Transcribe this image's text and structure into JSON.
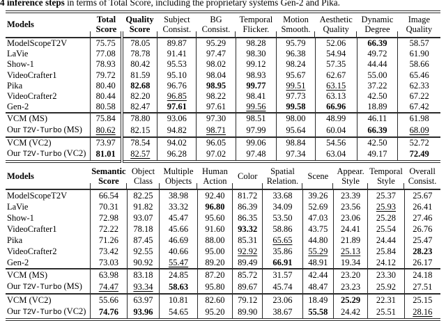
{
  "caption": {
    "bold": "4 inference steps",
    "rest": " in terms of Total Score, including the proprietary systems Gen-2 and Pika."
  },
  "colors": {
    "background": "#ffffff",
    "text": "#000000",
    "rule": "#2a2a2a"
  },
  "tables": [
    {
      "id": "vbench-quality-table",
      "models_header": "Models",
      "columns": [
        {
          "l1": "Total",
          "l2": "Score",
          "bold": true
        },
        {
          "l1": "Quality",
          "l2": "Score",
          "bold": true,
          "double_rule_left": true
        },
        {
          "l1": "Subject",
          "l2": "Consist."
        },
        {
          "l1": "BG",
          "l2": "Consist."
        },
        {
          "l1": "Temporal",
          "l2": "Flicker."
        },
        {
          "l1": "Motion",
          "l2": "Smooth."
        },
        {
          "l1": "Aesthetic",
          "l2": "Quality"
        },
        {
          "l1": "Dynamic",
          "l2": "Degree"
        },
        {
          "l1": "Image",
          "l2": "Quality"
        }
      ],
      "sections": [
        {
          "rows": [
            {
              "model": "ModelScopeT2V",
              "cells": [
                "75.75",
                "78.05",
                "89.87",
                "95.29",
                "98.28",
                "95.79",
                "52.06",
                {
                  "v": "66.39",
                  "f": "b"
                },
                "58.57"
              ]
            },
            {
              "model": "LaVie",
              "cells": [
                "77.08",
                "78.78",
                "91.41",
                "97.47",
                "98.30",
                "96.38",
                "54.94",
                "49.72",
                "61.90"
              ]
            },
            {
              "model": "Show-1",
              "cells": [
                "78.93",
                "80.42",
                "95.53",
                "98.02",
                "99.12",
                "98.24",
                "57.35",
                "44.44",
                "58.66"
              ]
            },
            {
              "model": "VideoCrafter1",
              "cells": [
                "79.72",
                "81.59",
                "95.10",
                "98.04",
                "98.93",
                "95.67",
                "62.67",
                "55.00",
                "65.46"
              ]
            },
            {
              "model": "Pika",
              "cells": [
                "80.40",
                {
                  "v": "82.68",
                  "f": "b"
                },
                "96.76",
                {
                  "v": "98.95",
                  "f": "b"
                },
                {
                  "v": "99.77",
                  "f": "b"
                },
                {
                  "v": "99.51",
                  "f": "u"
                },
                {
                  "v": "63.15",
                  "f": "u"
                },
                "37.22",
                "62.33"
              ]
            },
            {
              "model": "VideoCrafter2",
              "cells": [
                "80.44",
                "82.20",
                {
                  "v": "96.85",
                  "f": "u"
                },
                "98.22",
                "98.41",
                "97.73",
                "63.13",
                "42.50",
                "67.22"
              ]
            },
            {
              "model": "Gen-2",
              "cells": [
                "80.58",
                "82.47",
                {
                  "v": "97.61",
                  "f": "b"
                },
                "97.61",
                {
                  "v": "99.56",
                  "f": "u"
                },
                {
                  "v": "99.58",
                  "f": "b"
                },
                {
                  "v": "66.96",
                  "f": "b"
                },
                "18.89",
                "67.42"
              ]
            }
          ]
        },
        {
          "rows": [
            {
              "model": "VCM (MS)",
              "cells": [
                "75.84",
                "78.80",
                "93.06",
                "97.30",
                "98.51",
                "98.00",
                "48.99",
                "46.11",
                "61.98"
              ]
            },
            {
              "model": "Our T2V-Turbo (MS)",
              "cells": [
                {
                  "v": "80.62",
                  "f": "u"
                },
                "82.15",
                "94.82",
                {
                  "v": "98.71",
                  "f": "u"
                },
                "97.99",
                "95.64",
                "60.04",
                {
                  "v": "66.39",
                  "f": "b"
                },
                {
                  "v": "68.09",
                  "f": "u"
                }
              ]
            }
          ]
        },
        {
          "rows": [
            {
              "model": "VCM (VC2)",
              "cells": [
                "73.97",
                "78.54",
                "94.02",
                "96.05",
                "99.06",
                "98.84",
                "54.56",
                "42.50",
                "52.72"
              ]
            },
            {
              "model": "Our T2V-Turbo (VC2)",
              "cells": [
                {
                  "v": "81.01",
                  "f": "b"
                },
                {
                  "v": "82.57",
                  "f": "u"
                },
                "96.28",
                "97.02",
                "97.48",
                "97.34",
                "63.04",
                "49.17",
                {
                  "v": "72.49",
                  "f": "b"
                }
              ]
            }
          ]
        }
      ]
    },
    {
      "id": "vbench-semantic-table",
      "models_header": "Models",
      "columns": [
        {
          "l1": "Semantic",
          "l2": "Score",
          "bold": true
        },
        {
          "l1": "Object",
          "l2": "Class"
        },
        {
          "l1": "Multiple",
          "l2": "Objects"
        },
        {
          "l1": "Human",
          "l2": "Action"
        },
        {
          "l1": "Color"
        },
        {
          "l1": "Spatial",
          "l2": "Relation."
        },
        {
          "l1": "Scene"
        },
        {
          "l1": "Appear.",
          "l2": "Style"
        },
        {
          "l1": "Temporal",
          "l2": "Style"
        },
        {
          "l1": "Overall",
          "l2": "Consist."
        }
      ],
      "sections": [
        {
          "rows": [
            {
              "model": "ModelScopeT2V",
              "cells": [
                "66.54",
                "82.25",
                "38.98",
                "92.40",
                "81.72",
                "33.68",
                "39.26",
                "23.39",
                "25.37",
                "25.67"
              ]
            },
            {
              "model": "LaVie",
              "cells": [
                "70.31",
                "91.82",
                "33.32",
                {
                  "v": "96.80",
                  "f": "b"
                },
                "86.39",
                "34.09",
                "52.69",
                "23.56",
                {
                  "v": "25.93",
                  "f": "u"
                },
                "26.41"
              ]
            },
            {
              "model": "Show-1",
              "cells": [
                "72.98",
                "93.07",
                "45.47",
                "95.60",
                "86.35",
                "53.50",
                "47.03",
                "23.06",
                "25.28",
                "27.46"
              ]
            },
            {
              "model": "VideoCrafter1",
              "cells": [
                "72.22",
                "78.18",
                "45.66",
                "91.60",
                {
                  "v": "93.32",
                  "f": "b"
                },
                "58.86",
                "43.75",
                "24.41",
                "25.54",
                "26.76"
              ]
            },
            {
              "model": "Pika",
              "cells": [
                "71.26",
                "87.45",
                "46.69",
                "88.00",
                "85.31",
                {
                  "v": "65.65",
                  "f": "u"
                },
                "44.80",
                "21.89",
                "24.44",
                "25.47"
              ]
            },
            {
              "model": "VideoCrafter2",
              "cells": [
                "73.42",
                "92.55",
                "40.66",
                "95.00",
                {
                  "v": "92.92",
                  "f": "u"
                },
                "35.86",
                {
                  "v": "55.29",
                  "f": "u"
                },
                {
                  "v": "25.13",
                  "f": "u"
                },
                "25.84",
                {
                  "v": "28.23",
                  "f": "b"
                }
              ]
            },
            {
              "model": "Gen-2",
              "cells": [
                "73.03",
                "90.92",
                {
                  "v": "55.47",
                  "f": "u"
                },
                "89.20",
                "89.49",
                {
                  "v": "66.91",
                  "f": "b"
                },
                "48.91",
                "19.34",
                "24.12",
                "26.17"
              ]
            }
          ]
        },
        {
          "rows": [
            {
              "model": "VCM (MS)",
              "cells": [
                "63.98",
                "83.18",
                "24.85",
                "87.20",
                "85.72",
                "31.57",
                "42.44",
                "23.20",
                "23.30",
                "24.18"
              ]
            },
            {
              "model": "Our T2V-Turbo (MS)",
              "cells": [
                {
                  "v": "74.47",
                  "f": "u"
                },
                {
                  "v": "93.34",
                  "f": "u"
                },
                {
                  "v": "58.63",
                  "f": "b"
                },
                "95.80",
                "89.67",
                "45.74",
                "48.47",
                "23.23",
                "25.92",
                "27.51"
              ]
            }
          ]
        },
        {
          "rows": [
            {
              "model": "VCM (VC2)",
              "cells": [
                "55.66",
                "63.97",
                "10.81",
                "82.60",
                "79.12",
                "23.06",
                "18.49",
                {
                  "v": "25.29",
                  "f": "b"
                },
                "22.31",
                "25.15"
              ]
            },
            {
              "model": "Our T2V-Turbo (VC2)",
              "cells": [
                {
                  "v": "74.76",
                  "f": "b"
                },
                {
                  "v": "93.96",
                  "f": "b"
                },
                "54.65",
                "95.20",
                "89.90",
                "38.67",
                {
                  "v": "55.58",
                  "f": "b"
                },
                "24.42",
                "25.51",
                {
                  "v": "28.16",
                  "f": "u"
                }
              ]
            }
          ]
        }
      ]
    }
  ]
}
